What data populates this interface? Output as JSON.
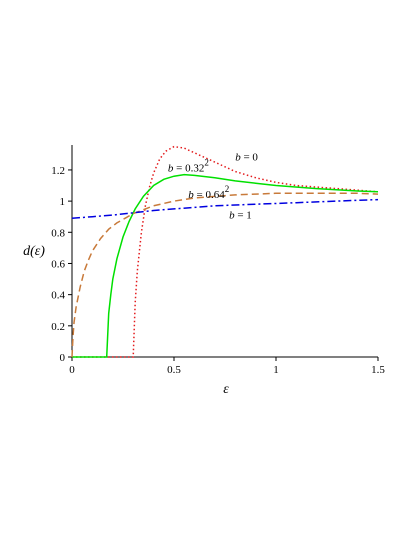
{
  "chart_data": {
    "type": "line",
    "xlabel": "ε",
    "ylabel": "d(ε)",
    "xlim": [
      0,
      1.5
    ],
    "ylim": [
      0,
      1.36
    ],
    "xticks": [
      {
        "v": 0,
        "label": "0"
      },
      {
        "v": 0.5,
        "label": "0.5"
      },
      {
        "v": 1,
        "label": "1"
      },
      {
        "v": 1.5,
        "label": "1.5"
      }
    ],
    "yticks": [
      {
        "v": 0,
        "label": "0"
      },
      {
        "v": 0.2,
        "label": "0.2"
      },
      {
        "v": 0.4,
        "label": "0.4"
      },
      {
        "v": 0.6,
        "label": "0.6"
      },
      {
        "v": 0.8,
        "label": "0.8"
      },
      {
        "v": 1,
        "label": "1"
      },
      {
        "v": 1.2,
        "label": "1.2"
      }
    ],
    "grid": false,
    "series": [
      {
        "name": "b = 0",
        "color": "#e31a1c",
        "dash": "dotted",
        "points": [
          [
            0,
            0
          ],
          [
            0.2,
            0
          ],
          [
            0.29,
            0
          ],
          [
            0.3,
            0
          ],
          [
            0.31,
            0.35
          ],
          [
            0.32,
            0.55
          ],
          [
            0.34,
            0.8
          ],
          [
            0.36,
            0.97
          ],
          [
            0.38,
            1.09
          ],
          [
            0.4,
            1.18
          ],
          [
            0.43,
            1.27
          ],
          [
            0.46,
            1.32
          ],
          [
            0.5,
            1.35
          ],
          [
            0.55,
            1.34
          ],
          [
            0.6,
            1.31
          ],
          [
            0.7,
            1.25
          ],
          [
            0.8,
            1.19
          ],
          [
            0.9,
            1.15
          ],
          [
            1.0,
            1.12
          ],
          [
            1.1,
            1.1
          ],
          [
            1.2,
            1.09
          ],
          [
            1.3,
            1.08
          ],
          [
            1.4,
            1.07
          ],
          [
            1.5,
            1.06
          ]
        ]
      },
      {
        "name": "b = 0.32^2",
        "color": "#00e000",
        "dash": "solid",
        "points": [
          [
            0,
            0
          ],
          [
            0.17,
            0
          ],
          [
            0.18,
            0.28
          ],
          [
            0.19,
            0.4
          ],
          [
            0.2,
            0.5
          ],
          [
            0.22,
            0.63
          ],
          [
            0.25,
            0.77
          ],
          [
            0.28,
            0.87
          ],
          [
            0.31,
            0.95
          ],
          [
            0.35,
            1.03
          ],
          [
            0.4,
            1.1
          ],
          [
            0.45,
            1.14
          ],
          [
            0.5,
            1.16
          ],
          [
            0.55,
            1.17
          ],
          [
            0.6,
            1.165
          ],
          [
            0.7,
            1.15
          ],
          [
            0.8,
            1.13
          ],
          [
            0.9,
            1.115
          ],
          [
            1.0,
            1.1
          ],
          [
            1.2,
            1.08
          ],
          [
            1.4,
            1.065
          ],
          [
            1.5,
            1.06
          ]
        ]
      },
      {
        "name": "b = 0.64^2",
        "color": "#c87a3a",
        "dash": "dashed",
        "points": [
          [
            0,
            0
          ],
          [
            0.005,
            0.13
          ],
          [
            0.01,
            0.22
          ],
          [
            0.02,
            0.32
          ],
          [
            0.04,
            0.45
          ],
          [
            0.06,
            0.55
          ],
          [
            0.08,
            0.62
          ],
          [
            0.1,
            0.68
          ],
          [
            0.14,
            0.76
          ],
          [
            0.18,
            0.82
          ],
          [
            0.22,
            0.86
          ],
          [
            0.26,
            0.89
          ],
          [
            0.3,
            0.92
          ],
          [
            0.4,
            0.97
          ],
          [
            0.5,
            1.0
          ],
          [
            0.6,
            1.02
          ],
          [
            0.7,
            1.03
          ],
          [
            0.8,
            1.04
          ],
          [
            0.9,
            1.045
          ],
          [
            1.0,
            1.05
          ],
          [
            1.2,
            1.05
          ],
          [
            1.4,
            1.05
          ],
          [
            1.5,
            1.045
          ]
        ]
      },
      {
        "name": "b = 1",
        "color": "#0000e0",
        "dash": "dashdot",
        "points": [
          [
            0,
            0.89
          ],
          [
            0.1,
            0.9
          ],
          [
            0.2,
            0.91
          ],
          [
            0.3,
            0.925
          ],
          [
            0.4,
            0.94
          ],
          [
            0.5,
            0.95
          ],
          [
            0.6,
            0.96
          ],
          [
            0.7,
            0.97
          ],
          [
            0.8,
            0.975
          ],
          [
            0.9,
            0.98
          ],
          [
            1.0,
            0.985
          ],
          [
            1.1,
            0.99
          ],
          [
            1.2,
            0.995
          ],
          [
            1.3,
            1.0
          ],
          [
            1.4,
            1.005
          ],
          [
            1.5,
            1.01
          ]
        ]
      }
    ],
    "annotations": [
      {
        "var": "b",
        "rest": " = 0",
        "exp": "",
        "x": 0.8,
        "y": 1.26
      },
      {
        "var": "b",
        "rest": " = 0.32",
        "exp": "2",
        "x": 0.47,
        "y": 1.19
      },
      {
        "var": "b",
        "rest": " = 0.64",
        "exp": "2",
        "x": 0.57,
        "y": 1.02
      },
      {
        "var": "b",
        "rest": " = 1",
        "exp": "",
        "x": 0.77,
        "y": 0.89
      }
    ]
  }
}
